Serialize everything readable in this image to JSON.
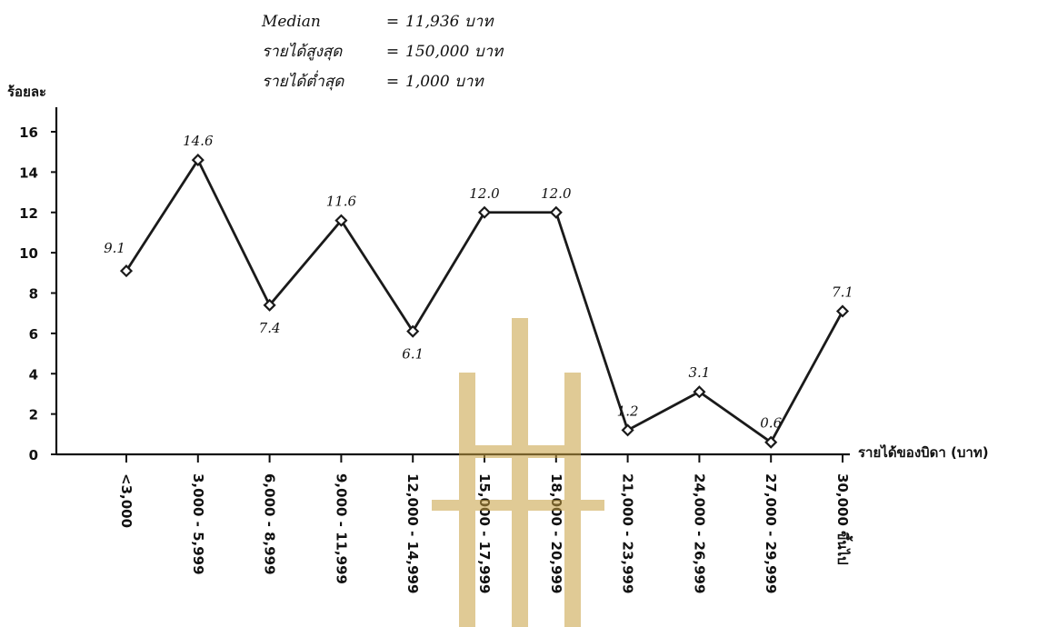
{
  "chart_data": {
    "type": "line",
    "ylabel": "ร้อยละ",
    "xlabel": "รายได้ของบิดา (บาท)",
    "ylim": [
      0,
      16
    ],
    "yticks": [
      0,
      2,
      4,
      6,
      8,
      10,
      12,
      14,
      16
    ],
    "categories": [
      "<3,000",
      "3,000 - 5,999",
      "6,000 - 8,999",
      "9,000 - 11,999",
      "12,000 - 14,999",
      "15,000 - 17,999",
      "18,000 - 20,999",
      "21,000 - 23,999",
      "24,000 - 26,999",
      "27,000 - 29,999",
      "30,000 ขึ้นไป"
    ],
    "values": [
      9.1,
      14.6,
      7.4,
      11.6,
      6.1,
      12.0,
      12.0,
      1.2,
      3.1,
      0.6,
      7.1
    ],
    "value_labels": [
      "9.1",
      "14.6",
      "7.4",
      "11.6",
      "6.1",
      "12.0",
      "12.0",
      "1.2",
      "3.1",
      "0.6",
      "7.1"
    ],
    "grid": false,
    "marker": "diamond",
    "line_color": "#1a1a1a"
  },
  "stats": [
    {
      "label": "Median",
      "eq": "=",
      "value": "11,936 บาท"
    },
    {
      "label": "รายได้สูงสุด",
      "eq": "=",
      "value": "150,000 บาท"
    },
    {
      "label": "รายได้ต่ำสุด",
      "eq": "=",
      "value": "1,000 บาท"
    }
  ],
  "watermark_color": "#c8a040"
}
